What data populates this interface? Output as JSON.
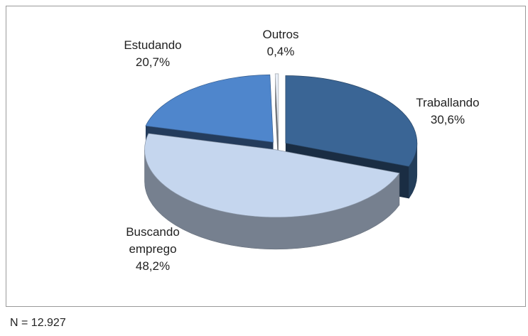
{
  "chart_data": {
    "type": "pie",
    "note": "N = 12.927",
    "categories": [
      "Traballando",
      "Buscando emprego",
      "Estudando",
      "Outros"
    ],
    "values": [
      30.6,
      48.2,
      20.7,
      0.4
    ],
    "value_labels": [
      "30,6%",
      "48,2%",
      "20,7%",
      "0,4%"
    ],
    "colors": [
      "#3a6595",
      "#c5d6ee",
      "#4f86cc",
      "#e8eef7"
    ]
  }
}
